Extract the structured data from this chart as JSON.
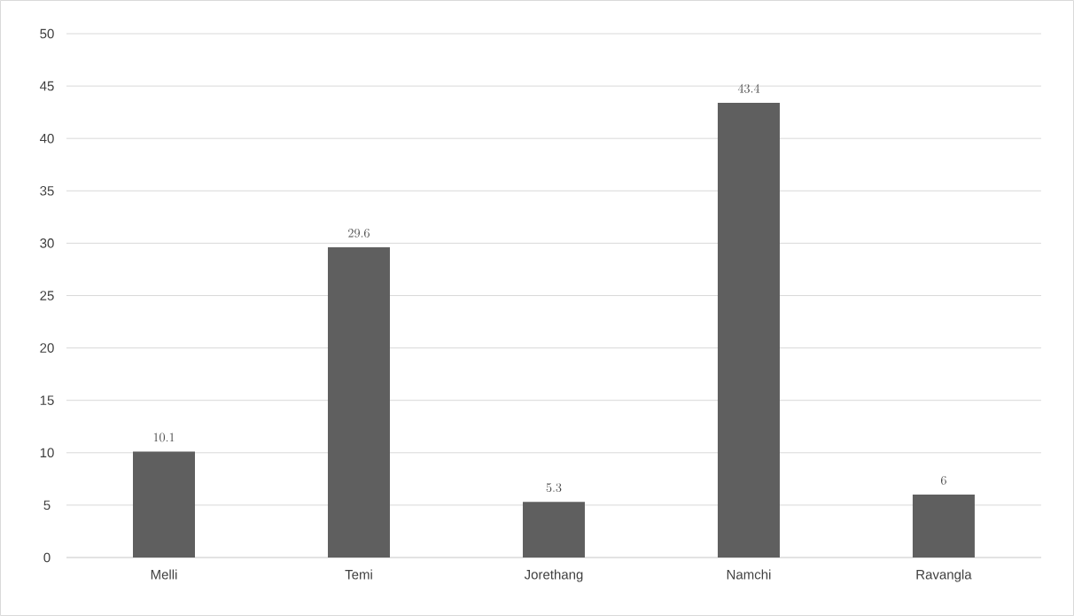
{
  "chart_data": {
    "type": "bar",
    "categories": [
      "Melli",
      "Temi",
      "Jorethang",
      "Namchi",
      "Ravangla"
    ],
    "values": [
      10.1,
      29.6,
      5.3,
      43.4,
      6
    ],
    "color": "#5f5f5f",
    "ylim": [
      0,
      50
    ],
    "yticks": [
      0,
      5,
      10,
      15,
      20,
      25,
      30,
      35,
      40,
      45,
      50
    ],
    "grid": "y",
    "data_labels": true
  }
}
